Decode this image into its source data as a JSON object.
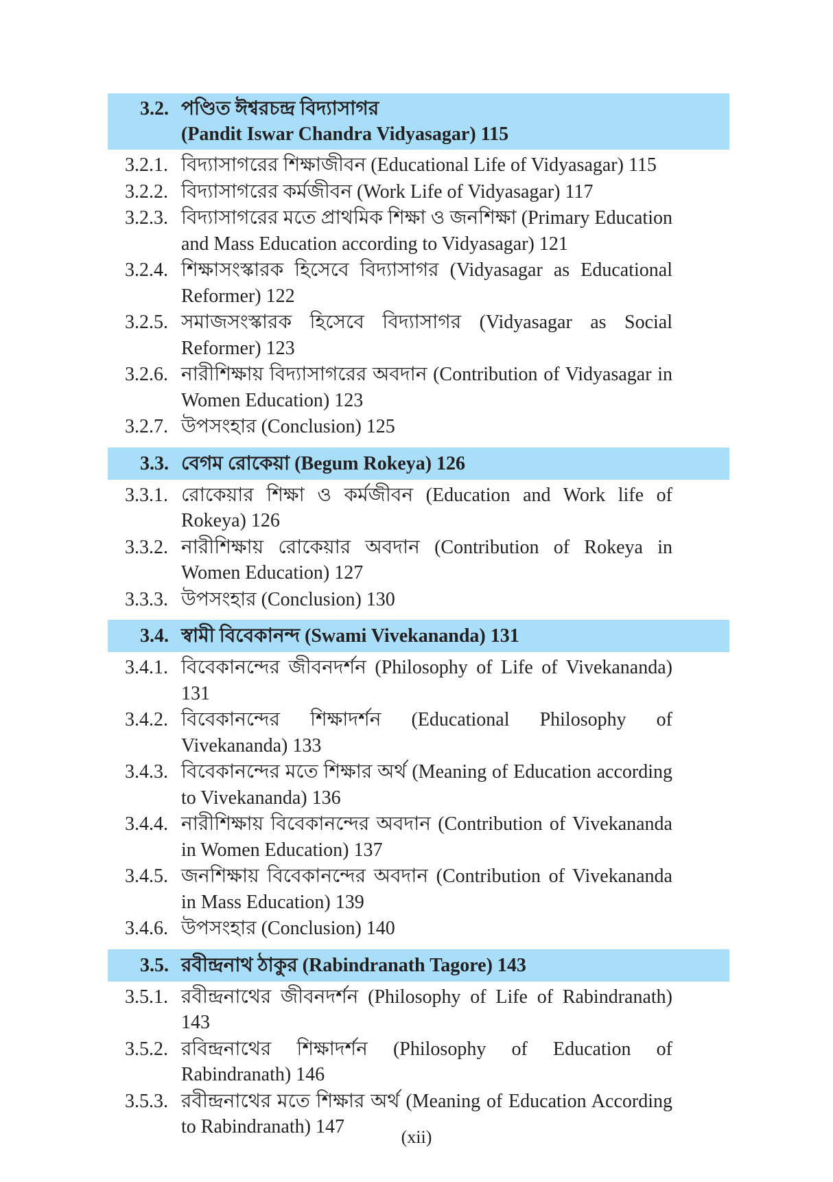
{
  "sections": [
    {
      "number": "3.2.",
      "title": "পণ্ডিত ঈশ্বরচন্দ্র বিদ্যাসাগর (Pandit Iswar Chandra Vidyasagar) 115",
      "title_lines": [
        "পণ্ডিত ঈশ্বরচন্দ্র বিদ্যাসাগর",
        "(Pandit Iswar Chandra Vidyasagar) 115"
      ],
      "entries": [
        {
          "number": "3.2.1.",
          "text": "বিদ্যাসাগরের শিক্ষাজীবন (Educational Life of Vidyasagar) 115"
        },
        {
          "number": "3.2.2.",
          "text": "বিদ্যাসাগরের কর্মজীবন (Work Life of Vidyasagar) 117"
        },
        {
          "number": "3.2.3.",
          "text": "বিদ্যাসাগরের মতে প্রাথমিক শিক্ষা ও জনশিক্ষা (Primary Education and Mass Education according to Vidyasagar) 121"
        },
        {
          "number": "3.2.4.",
          "text": "শিক্ষাসংস্কারক হিসেবে বিদ্যাসাগর (Vidyasagar as Educational Reformer) 122"
        },
        {
          "number": "3.2.5.",
          "text": "সমাজসংস্কারক হিসেবে বিদ্যাসাগর (Vidyasagar as Social Reformer) 123"
        },
        {
          "number": "3.2.6.",
          "text": "নারীশিক্ষায় বিদ্যাসাগরের অবদান (Contribution of Vidyasagar in Women Education) 123"
        },
        {
          "number": "3.2.7.",
          "text": "উপসংহার (Conclusion) 125"
        }
      ]
    },
    {
      "number": "3.3.",
      "title_lines": [
        "বেগম রোকেয়া (Begum Rokeya) 126"
      ],
      "entries": [
        {
          "number": "3.3.1.",
          "text": "রোকেয়ার শিক্ষা ও কর্মজীবন (Education and Work life of Rokeya) 126"
        },
        {
          "number": "3.3.2.",
          "text": "নারীশিক্ষায় রোকেয়ার অবদান (Contribution of Rokeya in Women Education) 127"
        },
        {
          "number": "3.3.3.",
          "text": "উপসংহার (Conclusion) 130"
        }
      ]
    },
    {
      "number": "3.4.",
      "title_lines": [
        "স্বামী বিবেকানন্দ (Swami Vivekananda) 131"
      ],
      "entries": [
        {
          "number": "3.4.1.",
          "text": "বিবেকানন্দের জীবনদর্শন (Philosophy of Life of Vivekananda) 131"
        },
        {
          "number": "3.4.2.",
          "text": "বিবেকানন্দের শিক্ষাদর্শন (Educational Philosophy of Vivekananda) 133"
        },
        {
          "number": "3.4.3.",
          "text": "বিবেকানন্দের মতে শিক্ষার অর্থ (Meaning of Education according to Vivekananda) 136"
        },
        {
          "number": "3.4.4.",
          "text": "নারীশিক্ষায় বিবেকানন্দের অবদান (Contribution of Vivekananda in Women Education) 137"
        },
        {
          "number": "3.4.5.",
          "text": "জনশিক্ষায় বিবেকানন্দের অবদান (Contribution of Vivekananda in Mass Education) 139"
        },
        {
          "number": "3.4.6.",
          "text": "উপসংহার (Conclusion) 140"
        }
      ]
    },
    {
      "number": "3.5.",
      "title_lines": [
        "রবীন্দ্রনাথ ঠাকুর (Rabindranath Tagore) 143"
      ],
      "entries": [
        {
          "number": "3.5.1.",
          "text": "রবীন্দ্রনাথের জীবনদর্শন (Philosophy of Life of Rabindranath) 143"
        },
        {
          "number": "3.5.2.",
          "text": "রবিন্দ্রনাথের শিক্ষাদর্শন (Philosophy of Education of Rabindranath) 146"
        },
        {
          "number": "3.5.3.",
          "text": "রবীন্দ্রনাথের মতে শিক্ষার অর্থ (Meaning of Education According to Rabindranath) 147"
        }
      ]
    }
  ],
  "page_number": "(xii)",
  "colors": {
    "section_band": "#a9def9",
    "text": "#231f20"
  }
}
